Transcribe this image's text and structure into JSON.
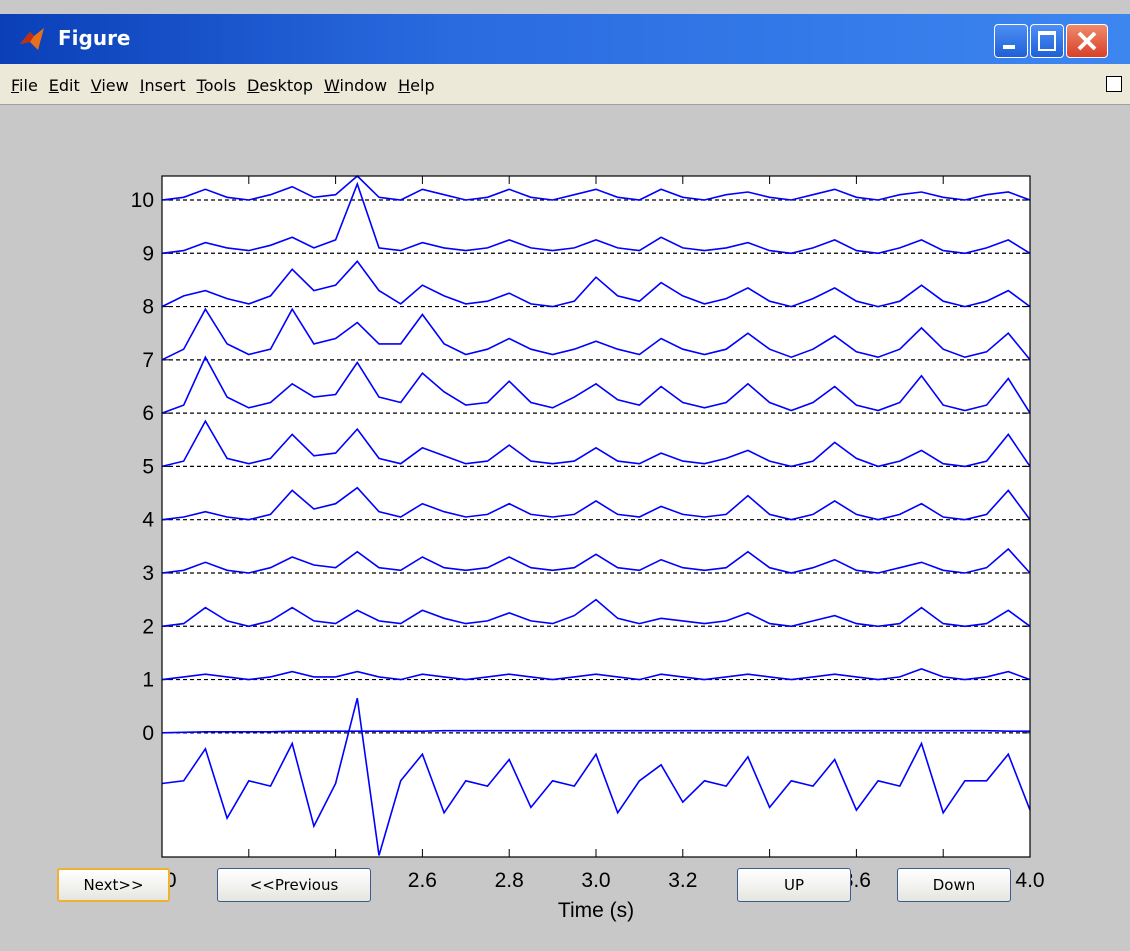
{
  "window": {
    "title": "Figure"
  },
  "menu": [
    "File",
    "Edit",
    "View",
    "Insert",
    "Tools",
    "Desktop",
    "Window",
    "Help"
  ],
  "buttons": [
    "Next>>",
    "<<Previous",
    "UP",
    "Down"
  ],
  "chart_data": {
    "type": "line",
    "xlabel": "Time (s)",
    "xlim": [
      2.0,
      4.0
    ],
    "xticks": [
      {
        "value": 2,
        "label": "2.0"
      },
      2.2,
      2.4,
      2.6,
      2.8,
      {
        "value": 3,
        "label": "3.0"
      },
      3.2,
      3.4,
      3.6,
      3.8,
      {
        "value": 4,
        "label": "4.0"
      }
    ],
    "ylim": [
      -2.33,
      10.45
    ],
    "yticks": [
      0,
      1,
      2,
      3,
      4,
      5,
      6,
      7,
      8,
      9,
      10
    ],
    "grid": true,
    "grid_style": "dashed",
    "x": [
      2.0,
      2.05,
      2.1,
      2.15,
      2.2,
      2.25,
      2.3,
      2.35,
      2.4,
      2.45,
      2.5,
      2.55,
      2.6,
      2.65,
      2.7,
      2.75,
      2.8,
      2.85,
      2.9,
      2.95,
      3.0,
      3.05,
      3.1,
      3.15,
      3.2,
      3.25,
      3.3,
      3.35,
      3.4,
      3.45,
      3.5,
      3.55,
      3.6,
      3.65,
      3.7,
      3.75,
      3.8,
      3.85,
      3.9,
      3.95,
      4.0
    ],
    "series": [
      {
        "color": "#0000ff",
        "values": [
          10.0,
          10.05,
          10.2,
          10.05,
          10.0,
          10.1,
          10.25,
          10.05,
          10.1,
          10.45,
          10.05,
          10.0,
          10.2,
          10.1,
          10.0,
          10.05,
          10.2,
          10.05,
          10.0,
          10.1,
          10.2,
          10.05,
          10.0,
          10.2,
          10.05,
          10.0,
          10.1,
          10.15,
          10.05,
          10.0,
          10.1,
          10.2,
          10.05,
          10.0,
          10.1,
          10.15,
          10.05,
          10.0,
          10.1,
          10.15,
          10.0
        ]
      },
      {
        "color": "#0000ff",
        "values": [
          9.0,
          9.05,
          9.2,
          9.1,
          9.05,
          9.15,
          9.3,
          9.1,
          9.25,
          10.3,
          9.1,
          9.05,
          9.2,
          9.1,
          9.05,
          9.1,
          9.25,
          9.1,
          9.05,
          9.1,
          9.25,
          9.1,
          9.05,
          9.3,
          9.1,
          9.05,
          9.1,
          9.2,
          9.05,
          9.0,
          9.1,
          9.25,
          9.05,
          9.0,
          9.1,
          9.25,
          9.05,
          9.0,
          9.1,
          9.25,
          9.0
        ]
      },
      {
        "color": "#0000ff",
        "values": [
          8.0,
          8.2,
          8.3,
          8.15,
          8.05,
          8.2,
          8.7,
          8.3,
          8.4,
          8.85,
          8.3,
          8.05,
          8.4,
          8.2,
          8.05,
          8.1,
          8.25,
          8.05,
          8.0,
          8.1,
          8.55,
          8.2,
          8.1,
          8.45,
          8.2,
          8.05,
          8.15,
          8.35,
          8.1,
          8.0,
          8.15,
          8.35,
          8.1,
          8.0,
          8.1,
          8.4,
          8.1,
          8.0,
          8.1,
          8.3,
          8.0
        ]
      },
      {
        "color": "#0000ff",
        "values": [
          7.0,
          7.2,
          7.95,
          7.3,
          7.1,
          7.2,
          7.95,
          7.3,
          7.4,
          7.7,
          7.3,
          7.3,
          7.85,
          7.3,
          7.1,
          7.2,
          7.4,
          7.2,
          7.1,
          7.2,
          7.35,
          7.2,
          7.1,
          7.4,
          7.2,
          7.1,
          7.2,
          7.5,
          7.2,
          7.05,
          7.2,
          7.45,
          7.15,
          7.05,
          7.2,
          7.6,
          7.2,
          7.05,
          7.15,
          7.5,
          7.0
        ]
      },
      {
        "color": "#0000ff",
        "values": [
          6.0,
          6.15,
          7.05,
          6.3,
          6.1,
          6.2,
          6.55,
          6.3,
          6.35,
          6.95,
          6.3,
          6.2,
          6.75,
          6.4,
          6.15,
          6.2,
          6.6,
          6.2,
          6.1,
          6.3,
          6.55,
          6.25,
          6.15,
          6.5,
          6.2,
          6.1,
          6.2,
          6.55,
          6.2,
          6.05,
          6.2,
          6.5,
          6.15,
          6.05,
          6.2,
          6.7,
          6.15,
          6.05,
          6.15,
          6.65,
          6.0
        ]
      },
      {
        "color": "#0000ff",
        "values": [
          5.0,
          5.1,
          5.85,
          5.15,
          5.05,
          5.15,
          5.6,
          5.2,
          5.25,
          5.7,
          5.15,
          5.05,
          5.35,
          5.2,
          5.05,
          5.1,
          5.4,
          5.1,
          5.05,
          5.1,
          5.35,
          5.1,
          5.05,
          5.25,
          5.1,
          5.05,
          5.15,
          5.3,
          5.1,
          5.0,
          5.1,
          5.45,
          5.15,
          5.0,
          5.1,
          5.3,
          5.05,
          5.0,
          5.1,
          5.6,
          5.0
        ]
      },
      {
        "color": "#0000ff",
        "values": [
          4.0,
          4.05,
          4.15,
          4.05,
          4.0,
          4.1,
          4.55,
          4.2,
          4.3,
          4.6,
          4.15,
          4.05,
          4.3,
          4.15,
          4.05,
          4.1,
          4.3,
          4.1,
          4.05,
          4.1,
          4.35,
          4.1,
          4.05,
          4.25,
          4.1,
          4.05,
          4.1,
          4.45,
          4.1,
          4.0,
          4.1,
          4.35,
          4.1,
          4.0,
          4.1,
          4.3,
          4.05,
          4.0,
          4.1,
          4.55,
          4.0
        ]
      },
      {
        "color": "#0000ff",
        "values": [
          3.0,
          3.05,
          3.2,
          3.05,
          3.0,
          3.1,
          3.3,
          3.15,
          3.1,
          3.4,
          3.1,
          3.05,
          3.3,
          3.1,
          3.05,
          3.1,
          3.3,
          3.1,
          3.05,
          3.1,
          3.35,
          3.1,
          3.05,
          3.25,
          3.1,
          3.05,
          3.1,
          3.4,
          3.1,
          3.0,
          3.1,
          3.25,
          3.05,
          3.0,
          3.1,
          3.2,
          3.05,
          3.0,
          3.1,
          3.45,
          3.0
        ]
      },
      {
        "color": "#0000ff",
        "values": [
          2.0,
          2.05,
          2.35,
          2.1,
          2.0,
          2.1,
          2.35,
          2.1,
          2.05,
          2.3,
          2.1,
          2.05,
          2.3,
          2.15,
          2.05,
          2.1,
          2.25,
          2.1,
          2.05,
          2.2,
          2.5,
          2.15,
          2.05,
          2.15,
          2.1,
          2.05,
          2.1,
          2.25,
          2.05,
          2.0,
          2.1,
          2.2,
          2.05,
          2.0,
          2.05,
          2.35,
          2.05,
          2.0,
          2.05,
          2.3,
          2.0
        ]
      },
      {
        "color": "#0000ff",
        "values": [
          1.0,
          1.05,
          1.1,
          1.05,
          1.0,
          1.05,
          1.15,
          1.05,
          1.05,
          1.15,
          1.05,
          1.0,
          1.1,
          1.05,
          1.0,
          1.05,
          1.1,
          1.05,
          1.0,
          1.05,
          1.1,
          1.05,
          1.0,
          1.1,
          1.05,
          1.0,
          1.05,
          1.1,
          1.05,
          1.0,
          1.05,
          1.1,
          1.05,
          1.0,
          1.05,
          1.2,
          1.05,
          1.0,
          1.05,
          1.15,
          1.0
        ]
      },
      {
        "color": "#0000ff",
        "values": [
          0.0,
          0.01,
          0.02,
          0.02,
          0.02,
          0.02,
          0.03,
          0.03,
          0.03,
          0.03,
          0.03,
          0.03,
          0.03,
          0.04,
          0.04,
          0.04,
          0.04,
          0.04,
          0.04,
          0.04,
          0.04,
          0.04,
          0.04,
          0.04,
          0.04,
          0.04,
          0.04,
          0.04,
          0.04,
          0.04,
          0.04,
          0.04,
          0.04,
          0.04,
          0.04,
          0.04,
          0.04,
          0.04,
          0.04,
          0.03,
          0.03
        ]
      },
      {
        "color": "#0000ff",
        "values": [
          -0.95,
          -0.9,
          -0.3,
          -1.6,
          -0.9,
          -1.0,
          -0.2,
          -1.75,
          -0.95,
          0.65,
          -2.3,
          -0.9,
          -0.4,
          -1.5,
          -0.9,
          -1.0,
          -0.5,
          -1.4,
          -0.9,
          -1.0,
          -0.4,
          -1.5,
          -0.9,
          -0.6,
          -1.3,
          -0.9,
          -1.0,
          -0.45,
          -1.4,
          -0.9,
          -1.0,
          -0.5,
          -1.45,
          -0.9,
          -1.0,
          -0.2,
          -1.5,
          -0.9,
          -0.9,
          -0.4,
          -1.45
        ]
      }
    ]
  }
}
